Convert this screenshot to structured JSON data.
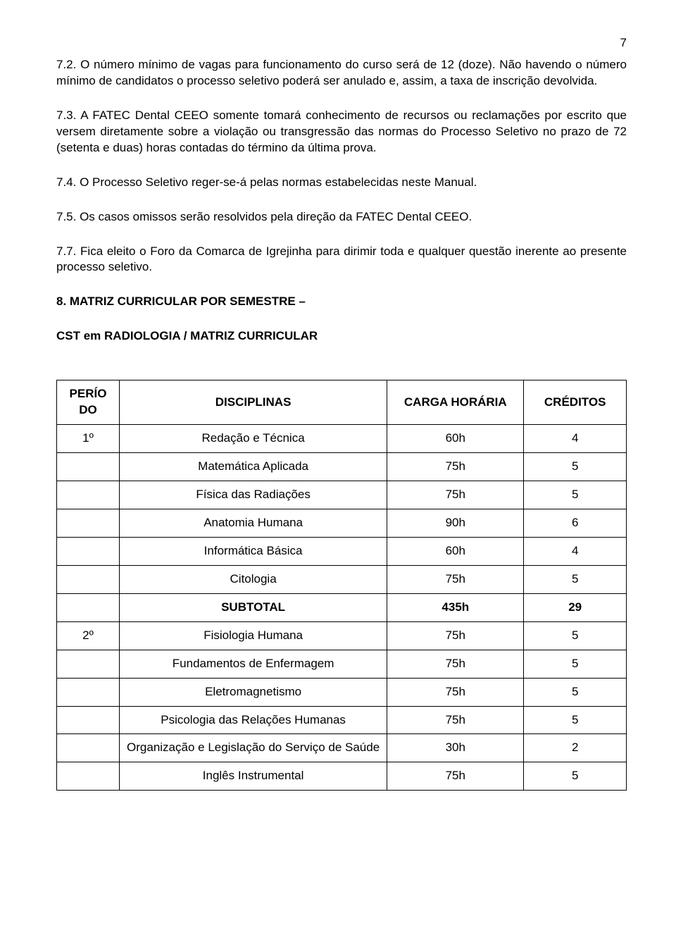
{
  "page_number": "7",
  "paragraphs": {
    "p72": "7.2. O número mínimo de vagas para funcionamento do curso será de 12 (doze). Não havendo o número mínimo de candidatos o processo seletivo poderá ser anulado e, assim, a taxa de inscrição devolvida.",
    "p73": "7.3. A FATEC Dental CEEO somente tomará conhecimento de recursos ou reclamações por escrito que versem diretamente sobre a violação ou transgressão das normas do Processo Seletivo no prazo de 72 (setenta e duas) horas contadas do término da última prova.",
    "p74": "7.4. O Processo Seletivo reger-se-á pelas normas estabelecidas neste Manual.",
    "p75": "7.5. Os casos omissos serão resolvidos pela direção da FATEC Dental CEEO.",
    "p77": "7.7. Fica eleito o Foro da Comarca de Igrejinha para dirimir toda e qualquer questão inerente ao presente processo seletivo."
  },
  "section8_title": "8. MATRIZ CURRICULAR POR SEMESTRE –",
  "cst_heading": "CST em RADIOLOGIA / MATRIZ CURRICULAR",
  "table": {
    "headers": {
      "periodo": "PERÍO DO",
      "disciplinas": "DISCIPLINAS",
      "carga": "CARGA HORÁRIA",
      "creditos": "CRÉDITOS"
    },
    "rows": [
      {
        "periodo": "1º",
        "disc": "Redação e Técnica",
        "carga": "60h",
        "cred": "4",
        "bold": false
      },
      {
        "periodo": "",
        "disc": "Matemática Aplicada",
        "carga": "75h",
        "cred": "5",
        "bold": false
      },
      {
        "periodo": "",
        "disc": "Física das Radiações",
        "carga": "75h",
        "cred": "5",
        "bold": false
      },
      {
        "periodo": "",
        "disc": "Anatomia  Humana",
        "carga": "90h",
        "cred": "6",
        "bold": false
      },
      {
        "periodo": "",
        "disc": "Informática Básica",
        "carga": "60h",
        "cred": "4",
        "bold": false
      },
      {
        "periodo": "",
        "disc": "Citologia",
        "carga": "75h",
        "cred": "5",
        "bold": false
      },
      {
        "periodo": "",
        "disc": "SUBTOTAL",
        "carga": "435h",
        "cred": "29",
        "bold": true
      },
      {
        "periodo": "2º",
        "disc": "Fisiologia Humana",
        "carga": "75h",
        "cred": "5",
        "bold": false
      },
      {
        "periodo": "",
        "disc": "Fundamentos de Enfermagem",
        "carga": "75h",
        "cred": "5",
        "bold": false
      },
      {
        "periodo": "",
        "disc": "Eletromagnetismo",
        "carga": "75h",
        "cred": "5",
        "bold": false
      },
      {
        "periodo": "",
        "disc": "Psicologia das Relações Humanas",
        "carga": "75h",
        "cred": "5",
        "bold": false
      },
      {
        "periodo": "",
        "disc": "Organização e Legislação do Serviço de Saúde",
        "carga": "30h",
        "cred": "2",
        "bold": false
      },
      {
        "periodo": "",
        "disc": "Inglês Instrumental",
        "carga": "75h",
        "cred": "5",
        "bold": false
      }
    ]
  }
}
